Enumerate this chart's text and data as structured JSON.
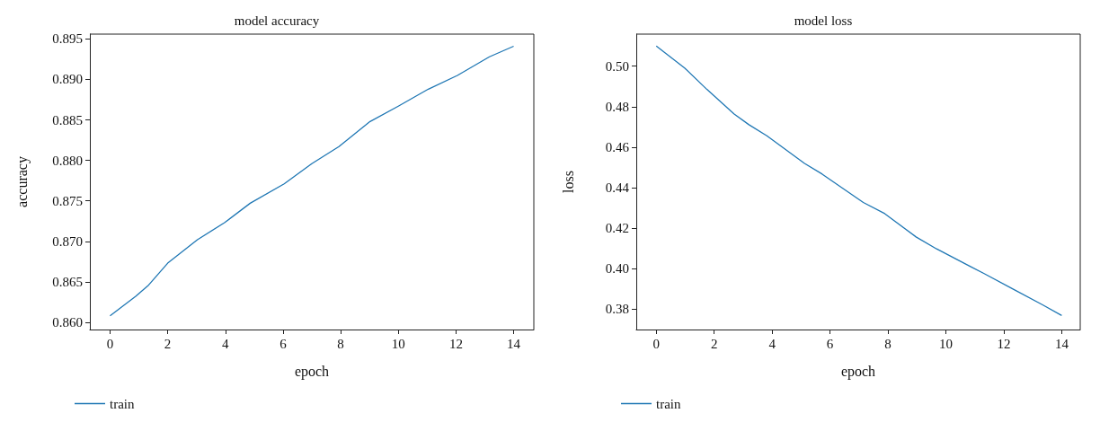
{
  "chart_data": [
    {
      "type": "line",
      "title": "model accuracy",
      "xlabel": "epoch",
      "ylabel": "accuracy",
      "xlim": [
        -0.7,
        14.7
      ],
      "xticks": [
        0,
        2,
        4,
        6,
        8,
        10,
        12,
        14
      ],
      "ylim": [
        0.8591,
        0.8956
      ],
      "yticks": [
        {
          "value": 0.86,
          "label": "0.860"
        },
        0.865,
        {
          "value": 0.87,
          "label": "0.870"
        },
        0.875,
        {
          "value": 0.88,
          "label": "0.880"
        },
        0.885,
        {
          "value": 0.89,
          "label": "0.890"
        },
        0.895
      ],
      "grid": false,
      "legend": "bottom left",
      "series": [
        {
          "name": "train",
          "color": "#1f77b4",
          "x": [
            0,
            0.89,
            1.34,
            2.0,
            3.03,
            3.97,
            4.86,
            6.04,
            7.0,
            7.94,
            9.02,
            10.0,
            11.04,
            12.05,
            13.16,
            14
          ],
          "values": [
            0.8608,
            0.8632,
            0.8646,
            0.8673,
            0.8702,
            0.8723,
            0.8747,
            0.8771,
            0.8796,
            0.8817,
            0.8848,
            0.8867,
            0.8888,
            0.8905,
            0.8928,
            0.8941
          ]
        }
      ]
    },
    {
      "type": "line",
      "title": "model loss",
      "xlabel": "epoch",
      "ylabel": "loss",
      "xlim": [
        -0.69,
        14.64
      ],
      "xticks": [
        0,
        2,
        4,
        6,
        8,
        10,
        12,
        14
      ],
      "ylim": [
        0.37,
        0.5158
      ],
      "yticks": [
        0.38,
        {
          "value": 0.4,
          "label": "0.40"
        },
        0.42,
        0.44,
        0.46,
        0.48,
        {
          "value": 0.5,
          "label": "0.50"
        }
      ],
      "grid": false,
      "legend": "bottom left",
      "series": [
        {
          "name": "train",
          "color": "#1f77b4",
          "x": [
            0,
            0.98,
            1.75,
            2.69,
            3.2,
            3.82,
            5.12,
            5.73,
            7.15,
            7.89,
            8.97,
            9.68,
            10.85,
            11.31,
            12.33,
            13.34,
            14
          ],
          "values": [
            0.5099,
            0.4991,
            0.4885,
            0.4764,
            0.4711,
            0.4656,
            0.452,
            0.4467,
            0.4327,
            0.4272,
            0.4157,
            0.4098,
            0.4011,
            0.3977,
            0.3899,
            0.3822,
            0.3769
          ]
        }
      ]
    }
  ]
}
